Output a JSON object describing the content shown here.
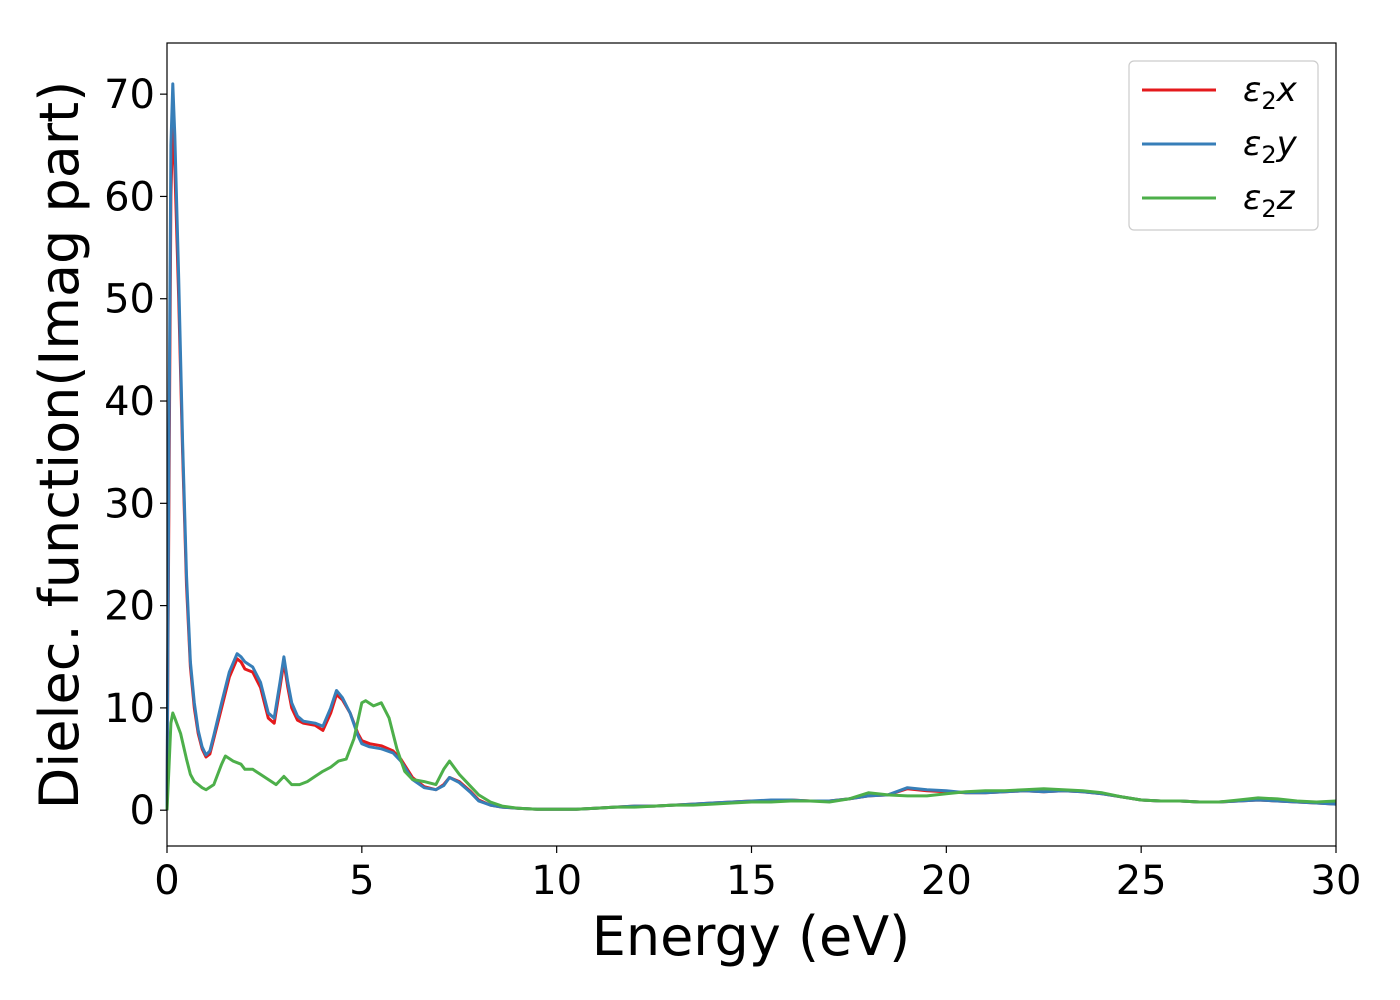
{
  "chart_data": {
    "type": "line",
    "title": "",
    "xlabel": "Energy (eV)",
    "ylabel": "Dielec. function(Imag part)",
    "xlim": [
      0,
      30
    ],
    "ylim": [
      -3.5,
      75
    ],
    "xticks": [
      0,
      5,
      10,
      15,
      20,
      25,
      30
    ],
    "yticks": [
      0,
      10,
      20,
      30,
      40,
      50,
      60,
      70
    ],
    "grid": false,
    "legend_position": "top-right",
    "series": [
      {
        "name": "ε₂x",
        "legend_base": "ε",
        "legend_sub": "2",
        "legend_suffix": "x",
        "color": "#e41a1c",
        "x": [
          0,
          0.05,
          0.1,
          0.15,
          0.2,
          0.3,
          0.4,
          0.5,
          0.6,
          0.7,
          0.8,
          0.9,
          1.0,
          1.1,
          1.2,
          1.4,
          1.6,
          1.8,
          1.9,
          2.0,
          2.2,
          2.4,
          2.6,
          2.75,
          2.9,
          3.0,
          3.1,
          3.2,
          3.35,
          3.5,
          3.8,
          4.0,
          4.2,
          4.35,
          4.5,
          4.7,
          4.9,
          5.0,
          5.2,
          5.5,
          5.8,
          6.0,
          6.3,
          6.6,
          6.9,
          7.1,
          7.25,
          7.5,
          7.8,
          8.0,
          8.3,
          8.6,
          9.0,
          9.5,
          10.0,
          10.5,
          11.0,
          11.5,
          12.0,
          12.5,
          13.0,
          13.5,
          14.0,
          14.5,
          15.0,
          15.5,
          16.0,
          16.5,
          17.0,
          17.5,
          18.0,
          18.5,
          19.0,
          19.5,
          20.0,
          20.5,
          21.0,
          21.5,
          22.0,
          22.5,
          23.0,
          23.5,
          24.0,
          24.5,
          25.0,
          25.5,
          26.0,
          26.5,
          27.0,
          27.5,
          28.0,
          28.5,
          29.0,
          29.5,
          30.0
        ],
        "y": [
          0,
          30,
          60,
          67.5,
          63,
          50,
          35,
          22,
          14,
          10,
          7.5,
          6,
          5.2,
          5.5,
          7,
          10,
          13,
          14.8,
          14.5,
          13.8,
          13.5,
          12,
          9,
          8.5,
          12,
          14.5,
          12,
          10,
          8.8,
          8.5,
          8.3,
          7.8,
          9.5,
          11.3,
          10.8,
          9.5,
          7.5,
          6.8,
          6.5,
          6.3,
          5.8,
          5,
          3.2,
          2.3,
          2,
          2.5,
          3.2,
          2.8,
          1.8,
          1,
          0.5,
          0.3,
          0.2,
          0.1,
          0.1,
          0.1,
          0.2,
          0.3,
          0.4,
          0.4,
          0.5,
          0.6,
          0.7,
          0.8,
          0.9,
          0.9,
          1.0,
          0.9,
          0.9,
          1.1,
          1.4,
          1.5,
          2.1,
          1.9,
          1.8,
          1.7,
          1.7,
          1.8,
          1.9,
          1.8,
          1.9,
          1.8,
          1.6,
          1.3,
          1.0,
          0.9,
          0.9,
          0.8,
          0.8,
          0.9,
          1.0,
          0.9,
          0.8,
          0.7,
          0.6
        ]
      },
      {
        "name": "ε₂y",
        "legend_base": "ε",
        "legend_sub": "2",
        "legend_suffix": "y",
        "color": "#377eb8",
        "x": [
          0,
          0.05,
          0.1,
          0.15,
          0.2,
          0.3,
          0.4,
          0.5,
          0.6,
          0.7,
          0.8,
          0.9,
          1.0,
          1.1,
          1.2,
          1.4,
          1.6,
          1.8,
          1.9,
          2.0,
          2.2,
          2.4,
          2.6,
          2.75,
          2.9,
          3.0,
          3.1,
          3.2,
          3.35,
          3.5,
          3.8,
          4.0,
          4.2,
          4.35,
          4.5,
          4.7,
          4.9,
          5.0,
          5.2,
          5.5,
          5.8,
          6.0,
          6.3,
          6.6,
          6.9,
          7.1,
          7.25,
          7.5,
          7.8,
          8.0,
          8.3,
          8.6,
          9.0,
          9.5,
          10.0,
          10.5,
          11.0,
          11.5,
          12.0,
          12.5,
          13.0,
          13.5,
          14.0,
          14.5,
          15.0,
          15.5,
          16.0,
          16.5,
          17.0,
          17.5,
          18.0,
          18.5,
          19.0,
          19.5,
          20.0,
          20.5,
          21.0,
          21.5,
          22.0,
          22.5,
          23.0,
          23.5,
          24.0,
          24.5,
          25.0,
          25.5,
          26.0,
          26.5,
          27.0,
          27.5,
          28.0,
          28.5,
          29.0,
          29.5,
          30.0
        ],
        "y": [
          0,
          35,
          65,
          71,
          66,
          52,
          36,
          23,
          14.5,
          10.5,
          7.8,
          6.2,
          5.4,
          5.8,
          7.3,
          10.5,
          13.5,
          15.3,
          15,
          14.5,
          14,
          12.5,
          9.5,
          9,
          12.5,
          15,
          12.5,
          10.5,
          9.2,
          8.7,
          8.5,
          8.2,
          10,
          11.7,
          11,
          9.5,
          7.3,
          6.5,
          6.2,
          6,
          5.6,
          4.8,
          3,
          2.2,
          2,
          2.4,
          3.2,
          2.7,
          1.7,
          0.9,
          0.5,
          0.3,
          0.2,
          0.1,
          0.1,
          0.1,
          0.2,
          0.3,
          0.4,
          0.4,
          0.5,
          0.6,
          0.7,
          0.8,
          0.9,
          1.0,
          1.0,
          0.9,
          0.9,
          1.1,
          1.4,
          1.5,
          2.2,
          2.0,
          1.9,
          1.7,
          1.7,
          1.8,
          1.9,
          1.8,
          1.9,
          1.8,
          1.6,
          1.3,
          1.0,
          0.9,
          0.9,
          0.8,
          0.8,
          0.9,
          1.0,
          0.9,
          0.8,
          0.7,
          0.6
        ]
      },
      {
        "name": "ε₂z",
        "legend_base": "ε",
        "legend_sub": "2",
        "legend_suffix": "z",
        "color": "#4daf4a",
        "x": [
          0,
          0.05,
          0.1,
          0.15,
          0.2,
          0.35,
          0.5,
          0.6,
          0.7,
          0.8,
          0.9,
          1.0,
          1.2,
          1.4,
          1.5,
          1.7,
          1.9,
          2.0,
          2.2,
          2.4,
          2.6,
          2.8,
          3.0,
          3.2,
          3.4,
          3.6,
          3.8,
          4.0,
          4.2,
          4.4,
          4.6,
          4.8,
          5.0,
          5.1,
          5.3,
          5.5,
          5.7,
          5.9,
          6.1,
          6.3,
          6.6,
          6.9,
          7.1,
          7.25,
          7.5,
          7.8,
          8.0,
          8.3,
          8.6,
          9.0,
          9.5,
          10.0,
          10.5,
          11.0,
          11.5,
          12.0,
          12.5,
          13.0,
          13.5,
          14.0,
          14.5,
          15.0,
          15.5,
          16.0,
          16.5,
          17.0,
          17.5,
          18.0,
          18.5,
          19.0,
          19.5,
          20.0,
          20.5,
          21.0,
          21.5,
          22.0,
          22.5,
          23.0,
          23.5,
          24.0,
          24.5,
          25.0,
          25.5,
          26.0,
          26.5,
          27.0,
          27.5,
          28.0,
          28.5,
          29.0,
          29.5,
          30.0
        ],
        "y": [
          0,
          4,
          8.5,
          9.5,
          9,
          7.5,
          5,
          3.5,
          2.8,
          2.5,
          2.2,
          2,
          2.5,
          4.5,
          5.3,
          4.8,
          4.5,
          4,
          4,
          3.5,
          3,
          2.5,
          3.3,
          2.5,
          2.5,
          2.8,
          3.3,
          3.8,
          4.2,
          4.8,
          5,
          7,
          10.5,
          10.7,
          10.2,
          10.5,
          9,
          6,
          3.8,
          3.0,
          2.8,
          2.5,
          4,
          4.8,
          3.5,
          2.3,
          1.5,
          0.8,
          0.4,
          0.2,
          0.1,
          0.1,
          0.1,
          0.2,
          0.3,
          0.3,
          0.4,
          0.5,
          0.5,
          0.6,
          0.7,
          0.8,
          0.8,
          0.9,
          0.9,
          0.8,
          1.1,
          1.7,
          1.5,
          1.4,
          1.4,
          1.6,
          1.8,
          1.9,
          1.9,
          2.0,
          2.1,
          2.0,
          1.9,
          1.7,
          1.3,
          1.0,
          0.9,
          0.9,
          0.8,
          0.8,
          1.0,
          1.2,
          1.1,
          0.9,
          0.8,
          0.9
        ]
      }
    ]
  }
}
